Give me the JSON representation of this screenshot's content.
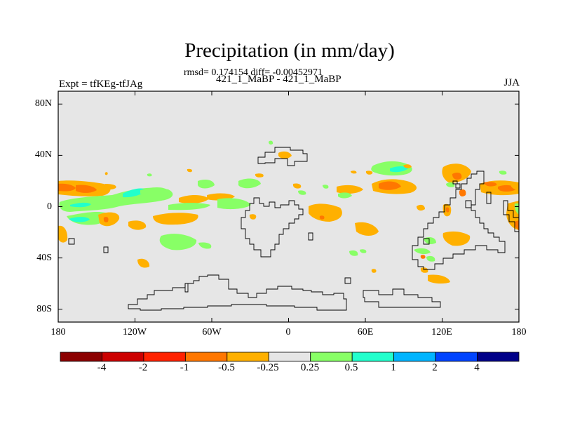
{
  "title": "Precipitation (in mm/day)",
  "stats": "rmsd= 0.174154 diff= -0.00452971",
  "subtitle": "421_1_MaBP - 421_1_MaBP",
  "left_label": "Expt = tfKEg-tfJAg",
  "right_label": "JJA",
  "map": {
    "projection": "cylindrical equidistant",
    "lon_range": [
      -180,
      180
    ],
    "lat_range": [
      -90,
      90
    ],
    "background_color": "#e6e6e6",
    "y_ticks": [
      {
        "lat": 80,
        "label": "80N"
      },
      {
        "lat": 40,
        "label": "40N"
      },
      {
        "lat": 0,
        "label": "0"
      },
      {
        "lat": -40,
        "label": "40S"
      },
      {
        "lat": -80,
        "label": "80S"
      }
    ],
    "x_ticks": [
      {
        "lon": -180,
        "label": "180"
      },
      {
        "lon": -120,
        "label": "120W"
      },
      {
        "lon": -60,
        "label": "60W"
      },
      {
        "lon": 0,
        "label": "0"
      },
      {
        "lon": 60,
        "label": "60E"
      },
      {
        "lon": 120,
        "label": "120E"
      },
      {
        "lon": 180,
        "label": "180"
      }
    ]
  },
  "colorbar": {
    "colors": [
      "#8b0000",
      "#cc0000",
      "#ff2200",
      "#ff7700",
      "#ffb000",
      "#e6e6e6",
      "#88ff66",
      "#22ffcc",
      "#00b4ff",
      "#0044ff",
      "#000088"
    ],
    "labels": [
      {
        "text": "-4",
        "boundary": 2
      },
      {
        "text": "-2",
        "boundary": 3
      },
      {
        "text": "-1",
        "boundary": 4
      },
      {
        "text": "-0.5",
        "boundary": 5
      },
      {
        "text": "-0.25",
        "boundary": 6
      },
      {
        "text": "0.25",
        "boundary": 7
      },
      {
        "text": "0.5",
        "boundary": 8
      },
      {
        "text": "1",
        "boundary": 9
      },
      {
        "text": "2",
        "boundary": 10
      },
      {
        "text": "4",
        "boundary": 11
      }
    ]
  }
}
